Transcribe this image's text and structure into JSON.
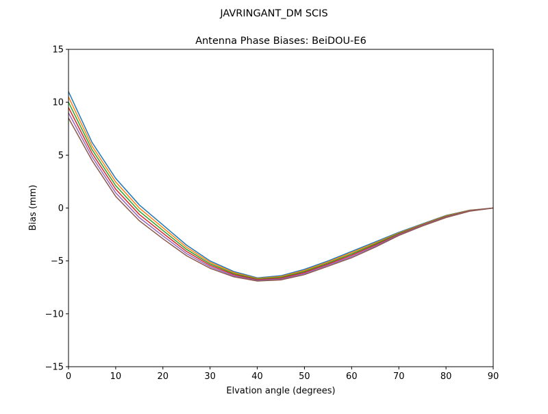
{
  "suptitle": "JAVRINGANT_DM   SCIS",
  "chart_data": {
    "type": "line",
    "title": "Antenna Phase Biases: BeiDOU-E6",
    "xlabel": "Elvation angle (degrees)",
    "ylabel": "Bias (mm)",
    "xlim": [
      0,
      90
    ],
    "ylim": [
      -15,
      15
    ],
    "xticks": [
      "0",
      "10",
      "20",
      "30",
      "40",
      "50",
      "60",
      "70",
      "80",
      "90"
    ],
    "yticks": [
      "15",
      "10",
      "5",
      "0",
      "−5",
      "−10",
      "−15"
    ],
    "xtick_values": [
      0,
      10,
      20,
      30,
      40,
      50,
      60,
      70,
      80,
      90
    ],
    "ytick_values": [
      15,
      10,
      5,
      0,
      -5,
      -10,
      -15
    ],
    "grid": false,
    "x": [
      0,
      5,
      10,
      15,
      20,
      25,
      30,
      35,
      40,
      45,
      50,
      55,
      60,
      65,
      70,
      75,
      80,
      85,
      90
    ],
    "colors": [
      "#1f77b4",
      "#ff7f0e",
      "#2ca02c",
      "#d62728",
      "#9467bd",
      "#8c564b",
      "#e377c2",
      "#7f7f7f",
      "#bcbd22",
      "#17becf"
    ],
    "series": [
      {
        "values": [
          11.0,
          6.2,
          2.8,
          0.3,
          -1.6,
          -3.5,
          -5.0,
          -6.0,
          -6.6,
          -6.4,
          -5.8,
          -5.0,
          -4.1,
          -3.2,
          -2.3,
          -1.5,
          -0.7,
          -0.2,
          0
        ]
      },
      {
        "values": [
          10.5,
          5.86,
          2.46,
          0.0,
          -1.86,
          -3.7,
          -5.14,
          -6.1,
          -6.66,
          -6.48,
          -5.9,
          -5.1,
          -4.22,
          -3.3,
          -2.36,
          -1.54,
          -0.74,
          -0.22,
          0
        ]
      },
      {
        "values": [
          10.0,
          5.52,
          2.12,
          -0.3,
          -2.12,
          -3.9,
          -5.28,
          -6.2,
          -6.72,
          -6.56,
          -6.0,
          -5.2,
          -4.34,
          -3.4,
          -2.42,
          -1.58,
          -0.78,
          -0.24,
          0
        ]
      },
      {
        "values": [
          9.5,
          5.18,
          1.78,
          -0.6,
          -2.38,
          -4.1,
          -5.42,
          -6.3,
          -6.78,
          -6.64,
          -6.1,
          -5.3,
          -4.46,
          -3.5,
          -2.48,
          -1.62,
          -0.82,
          -0.26,
          0
        ]
      },
      {
        "values": [
          9.0,
          4.84,
          1.44,
          -0.9,
          -2.64,
          -4.3,
          -5.56,
          -6.4,
          -6.84,
          -6.72,
          -6.2,
          -5.4,
          -4.58,
          -3.6,
          -2.54,
          -1.66,
          -0.86,
          -0.28,
          0
        ]
      },
      {
        "values": [
          8.5,
          4.5,
          1.1,
          -1.2,
          -2.9,
          -4.5,
          -5.7,
          -6.5,
          -6.9,
          -6.8,
          -6.3,
          -5.5,
          -4.7,
          -3.7,
          -2.6,
          -1.7,
          -0.9,
          -0.3,
          0
        ]
      }
    ]
  }
}
